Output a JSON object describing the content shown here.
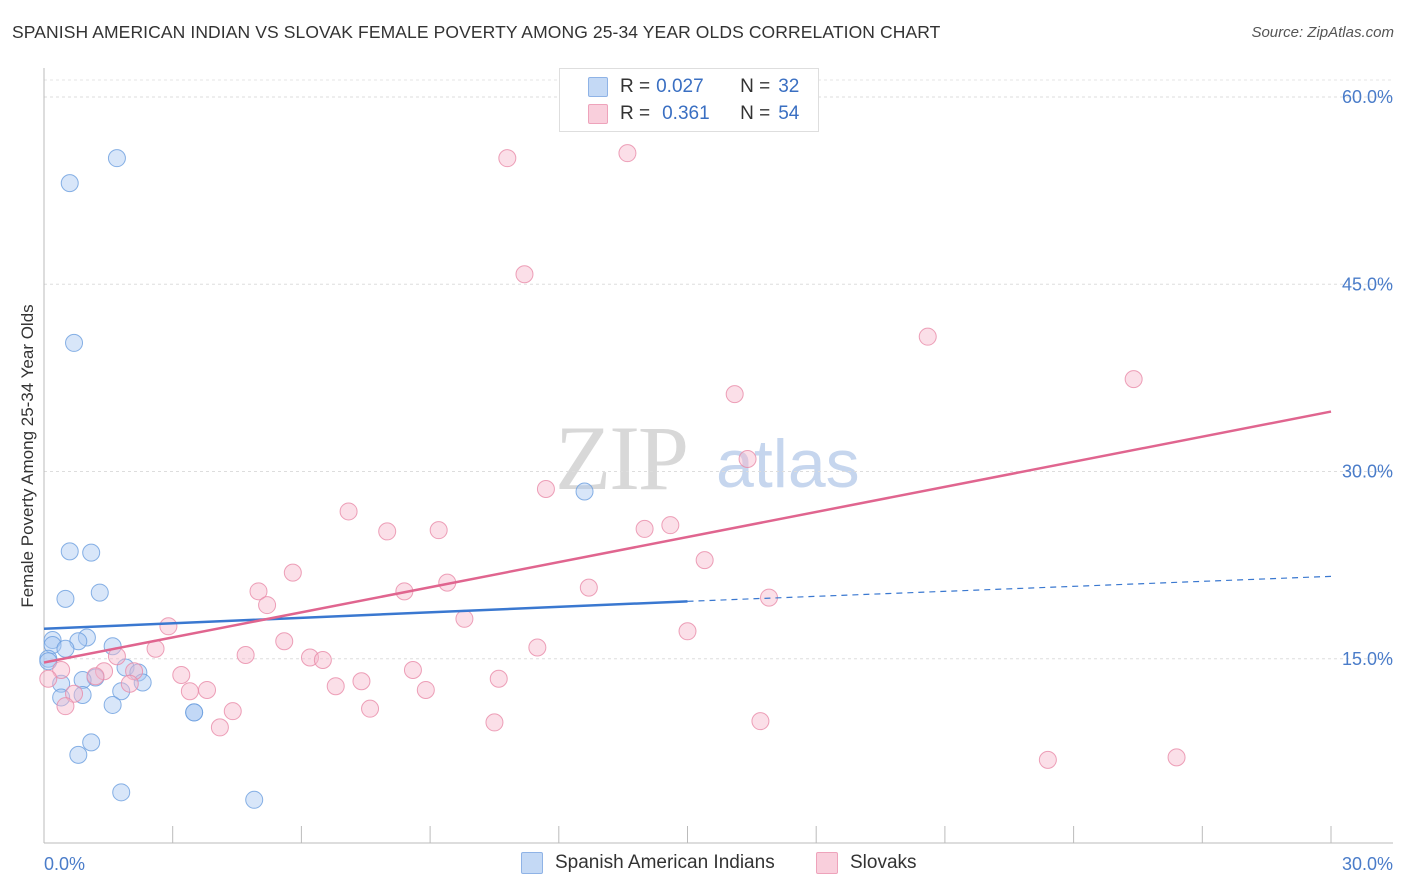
{
  "title": "SPANISH AMERICAN INDIAN VS SLOVAK FEMALE POVERTY AMONG 25-34 YEAR OLDS CORRELATION CHART",
  "source": "Source: ZipAtlas.com",
  "watermark": {
    "zip": "ZIP",
    "atlas": "atlas"
  },
  "legend": {
    "rows": [
      {
        "r_label": "R = ",
        "r_value": "0.027",
        "n_label": "N = ",
        "n_value": "32",
        "color": "#a9c8f2"
      },
      {
        "r_label": "R = ",
        "r_value": "0.361",
        "n_label": "N = ",
        "n_value": "54",
        "color": "#f6b9cc"
      }
    ]
  },
  "chart_data": {
    "type": "scatter",
    "title": "SPANISH AMERICAN INDIAN VS SLOVAK FEMALE POVERTY AMONG 25-34 YEAR OLDS CORRELATION CHART",
    "xlabel": "",
    "ylabel": "Female Poverty Among 25-34 Year Olds",
    "xlim": [
      0,
      30
    ],
    "ylim": [
      0,
      60
    ],
    "x_tick_labels": [
      "0.0%",
      "30.0%"
    ],
    "y_ticks": [
      15,
      30,
      45,
      60
    ],
    "y_tick_labels": [
      "15.0%",
      "30.0%",
      "45.0%",
      "60.0%"
    ],
    "grid": true,
    "legend_position": "top-center",
    "series": [
      {
        "name": "Spanish American Indians",
        "color": "#a9c8f2",
        "edge": "#6a9ede",
        "trend": {
          "x0": 0,
          "y0": 17.4,
          "x1": 15,
          "y1": 19.6,
          "dashed_to": 30,
          "dashed_y": 21.6,
          "color": "#3a78d0"
        },
        "points": [
          [
            1.7,
            55.1
          ],
          [
            0.6,
            53.1
          ],
          [
            0.7,
            40.3
          ],
          [
            12.6,
            28.4
          ],
          [
            0.6,
            23.6
          ],
          [
            1.1,
            23.5
          ],
          [
            1.3,
            20.3
          ],
          [
            0.5,
            19.8
          ],
          [
            1.0,
            16.7
          ],
          [
            0.8,
            16.4
          ],
          [
            0.2,
            16.5
          ],
          [
            0.2,
            16.1
          ],
          [
            0.5,
            15.8
          ],
          [
            1.6,
            16.0
          ],
          [
            0.1,
            15.0
          ],
          [
            0.1,
            14.8
          ],
          [
            1.9,
            14.3
          ],
          [
            2.2,
            13.9
          ],
          [
            2.3,
            13.1
          ],
          [
            1.2,
            13.5
          ],
          [
            0.9,
            13.3
          ],
          [
            0.4,
            13.0
          ],
          [
            1.8,
            12.4
          ],
          [
            0.4,
            11.9
          ],
          [
            0.9,
            12.1
          ],
          [
            1.6,
            11.3
          ],
          [
            3.5,
            10.7
          ],
          [
            3.5,
            10.7
          ],
          [
            1.1,
            8.3
          ],
          [
            0.8,
            7.3
          ],
          [
            1.8,
            4.3
          ],
          [
            4.9,
            3.7
          ]
        ]
      },
      {
        "name": "Slovaks",
        "color": "#f6b9cc",
        "edge": "#e88aa8",
        "trend": {
          "x0": 0,
          "y0": 14.7,
          "x1": 30,
          "y1": 34.8,
          "color": "#e0658f"
        },
        "points": [
          [
            10.8,
            55.1
          ],
          [
            13.6,
            55.5
          ],
          [
            11.2,
            45.8
          ],
          [
            20.6,
            40.8
          ],
          [
            25.4,
            37.4
          ],
          [
            16.1,
            36.2
          ],
          [
            16.4,
            31.0
          ],
          [
            11.7,
            28.6
          ],
          [
            7.1,
            26.8
          ],
          [
            8.0,
            25.2
          ],
          [
            9.2,
            25.3
          ],
          [
            14.0,
            25.4
          ],
          [
            14.6,
            25.7
          ],
          [
            15.4,
            22.9
          ],
          [
            5.8,
            21.9
          ],
          [
            9.4,
            21.1
          ],
          [
            12.7,
            20.7
          ],
          [
            5.0,
            20.4
          ],
          [
            8.4,
            20.4
          ],
          [
            16.9,
            19.9
          ],
          [
            5.2,
            19.3
          ],
          [
            9.8,
            18.2
          ],
          [
            2.9,
            17.6
          ],
          [
            15.0,
            17.2
          ],
          [
            5.6,
            16.4
          ],
          [
            11.5,
            15.9
          ],
          [
            2.6,
            15.8
          ],
          [
            4.7,
            15.3
          ],
          [
            6.2,
            15.1
          ],
          [
            6.5,
            14.9
          ],
          [
            1.7,
            15.2
          ],
          [
            1.4,
            14.0
          ],
          [
            0.4,
            14.1
          ],
          [
            2.1,
            14.0
          ],
          [
            3.2,
            13.7
          ],
          [
            8.6,
            14.1
          ],
          [
            10.6,
            13.4
          ],
          [
            1.2,
            13.6
          ],
          [
            7.4,
            13.2
          ],
          [
            6.8,
            12.8
          ],
          [
            0.7,
            12.2
          ],
          [
            3.4,
            12.4
          ],
          [
            3.8,
            12.5
          ],
          [
            8.9,
            12.5
          ],
          [
            2.0,
            13.0
          ],
          [
            0.1,
            13.4
          ],
          [
            0.5,
            11.2
          ],
          [
            7.6,
            11.0
          ],
          [
            4.4,
            10.8
          ],
          [
            10.5,
            9.9
          ],
          [
            16.7,
            10.0
          ],
          [
            4.1,
            9.5
          ],
          [
            23.4,
            6.9
          ],
          [
            26.4,
            7.1
          ]
        ]
      }
    ]
  }
}
